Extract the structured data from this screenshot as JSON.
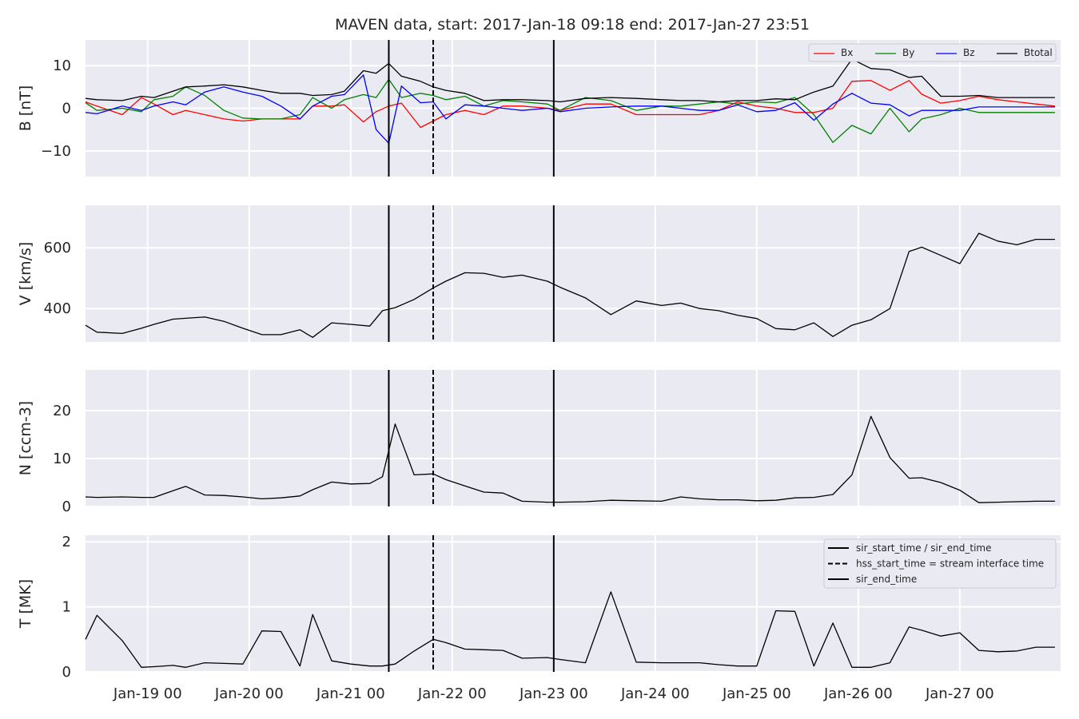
{
  "title": "MAVEN data, start: 2017-Jan-18 09:18  end: 2017-Jan-27 23:51",
  "x_tick_labels": [
    "Jan-19 00",
    "Jan-20 00",
    "Jan-21 00",
    "Jan-22 00",
    "Jan-23 00",
    "Jan-24 00",
    "Jan-25 00",
    "Jan-26 00",
    "Jan-27 00"
  ],
  "colors": {
    "bg": "#eaeaf2",
    "grid": "#ffffff",
    "Bx": "#ff0000",
    "By": "#008000",
    "Bz": "#0000ff",
    "Btotal": "#000000",
    "text": "#262626"
  },
  "chart_data": [
    {
      "type": "line",
      "panel": "B",
      "ylabel": "B [nT]",
      "ylim": [
        -16,
        16
      ],
      "yticks": [
        -10,
        0,
        10
      ],
      "x_range": [
        "2017-01-18 09:18",
        "2017-01-27 23:51"
      ],
      "x_time_days": [
        18.3875,
        18.5,
        18.75,
        18.9375,
        19.0625,
        19.25,
        19.375,
        19.5625,
        19.75,
        19.9375,
        20.125,
        20.3125,
        20.5,
        20.625,
        20.8125,
        20.9375,
        21.125,
        21.25,
        21.375,
        21.5,
        21.6875,
        21.8125,
        21.9375,
        22.125,
        22.3125,
        22.5,
        22.6875,
        22.9375,
        23.0625,
        23.3125,
        23.5625,
        23.8125,
        24.0625,
        24.25,
        24.4375,
        24.625,
        24.8125,
        25.0,
        25.1875,
        25.375,
        25.5625,
        25.75,
        25.9375,
        26.125,
        26.3125,
        26.5,
        26.625,
        26.8125,
        27.0,
        27.1875,
        27.375,
        27.5625,
        27.75,
        27.9375
      ],
      "series": [
        {
          "name": "Bx",
          "color": "#ff0000",
          "values": [
            1.5,
            0.5,
            -1.5,
            2.5,
            1.0,
            -1.5,
            -0.5,
            -1.5,
            -2.5,
            -3.0,
            -2.5,
            -2.5,
            -2.5,
            0.5,
            0.5,
            0.8,
            -3.2,
            -0.8,
            0.5,
            1.2,
            -4.5,
            -3.0,
            -1.5,
            -0.5,
            -1.5,
            0.5,
            0.5,
            0.0,
            -0.5,
            1.0,
            1.0,
            -1.5,
            -1.5,
            -1.5,
            -1.5,
            -0.5,
            1.5,
            0.5,
            0.0,
            -1.0,
            -1.0,
            0.0,
            6.3,
            6.5,
            4.2,
            6.5,
            3.3,
            1.2,
            1.8,
            2.8,
            2.0,
            1.5,
            1.0,
            0.5
          ]
        },
        {
          "name": "By",
          "color": "#008000",
          "values": [
            1.3,
            -0.5,
            0.0,
            -0.8,
            2.0,
            2.8,
            5.0,
            3.0,
            -0.5,
            -2.3,
            -2.5,
            -2.5,
            -1.5,
            2.5,
            0.0,
            2.0,
            3.2,
            2.5,
            6.8,
            2.5,
            3.5,
            3.0,
            2.0,
            2.8,
            0.5,
            1.8,
            1.5,
            1.0,
            -0.5,
            2.5,
            1.8,
            -0.5,
            0.5,
            0.5,
            1.0,
            1.5,
            1.0,
            1.5,
            1.3,
            2.5,
            -1.5,
            -8.0,
            -4.0,
            -6.0,
            0.0,
            -5.5,
            -2.5,
            -1.5,
            0.0,
            -1.0,
            -1.0,
            -1.0,
            -1.0,
            -1.0
          ]
        },
        {
          "name": "Bz",
          "color": "#0000ff",
          "values": [
            -1.0,
            -1.3,
            0.5,
            -0.5,
            0.5,
            1.5,
            0.8,
            3.8,
            5.0,
            3.8,
            2.8,
            0.5,
            -2.5,
            0.5,
            2.8,
            3.2,
            7.8,
            -5.0,
            -8.2,
            5.2,
            1.3,
            1.5,
            -2.5,
            0.8,
            0.5,
            0.0,
            -0.5,
            0.0,
            -0.8,
            0.0,
            0.3,
            0.5,
            0.5,
            0.0,
            -0.5,
            -0.5,
            0.8,
            -0.8,
            -0.5,
            1.3,
            -2.8,
            1.0,
            3.5,
            1.2,
            0.8,
            -1.8,
            -0.5,
            -0.5,
            -0.5,
            0.3,
            0.3,
            0.3,
            0.3,
            0.3
          ]
        },
        {
          "name": "Btotal",
          "color": "#000000",
          "values": [
            2.3,
            2.0,
            1.8,
            2.8,
            2.5,
            4.0,
            5.0,
            5.2,
            5.5,
            5.0,
            4.2,
            3.5,
            3.5,
            3.0,
            3.2,
            4.0,
            8.8,
            8.2,
            10.5,
            7.5,
            6.3,
            5.0,
            4.2,
            3.5,
            1.8,
            2.0,
            2.0,
            1.8,
            1.5,
            2.3,
            2.5,
            2.3,
            2.0,
            1.8,
            1.8,
            1.5,
            1.8,
            1.8,
            2.2,
            2.0,
            3.8,
            5.2,
            11.5,
            9.3,
            9.0,
            7.2,
            7.5,
            2.8,
            2.8,
            3.0,
            2.5,
            2.5,
            2.5,
            2.5
          ]
        }
      ],
      "legend": [
        "Bx",
        "By",
        "Bz",
        "Btotal"
      ],
      "legend_loc": "upper right"
    },
    {
      "type": "line",
      "panel": "V",
      "ylabel": "V [km/s]",
      "ylim": [
        290,
        740
      ],
      "yticks": [
        400,
        600
      ],
      "x_time_days": [
        18.3875,
        18.5,
        18.75,
        18.9375,
        19.0625,
        19.25,
        19.375,
        19.5625,
        19.75,
        19.9375,
        20.125,
        20.3125,
        20.5,
        20.625,
        20.8125,
        21.0,
        21.1875,
        21.3125,
        21.4375,
        21.625,
        21.8125,
        21.9375,
        22.125,
        22.3125,
        22.5,
        22.6875,
        22.9375,
        23.0625,
        23.3125,
        23.5625,
        23.8125,
        24.0625,
        24.25,
        24.4375,
        24.625,
        24.8125,
        25.0,
        25.1875,
        25.375,
        25.5625,
        25.75,
        25.9375,
        26.125,
        26.3125,
        26.5,
        26.625,
        26.8125,
        27.0,
        27.1875,
        27.375,
        27.5625,
        27.75,
        27.9375
      ],
      "series": [
        {
          "name": "V",
          "color": "#000000",
          "values": [
            345,
            322,
            318,
            335,
            348,
            365,
            368,
            372,
            358,
            335,
            314,
            314,
            330,
            305,
            353,
            348,
            342,
            393,
            403,
            430,
            468,
            490,
            518,
            516,
            503,
            510,
            490,
            470,
            435,
            380,
            425,
            410,
            418,
            400,
            393,
            378,
            367,
            334,
            330,
            353,
            308,
            345,
            363,
            400,
            588,
            602,
            575,
            548,
            648,
            622,
            610,
            628,
            628
          ]
        }
      ]
    },
    {
      "type": "line",
      "panel": "N",
      "ylabel": "N [ccm-3]",
      "ylim": [
        0,
        28.5
      ],
      "yticks": [
        0,
        10,
        20
      ],
      "x_time_days": [
        18.3875,
        18.5,
        18.75,
        18.9375,
        19.0625,
        19.25,
        19.375,
        19.5625,
        19.75,
        19.9375,
        20.125,
        20.3125,
        20.5,
        20.625,
        20.8125,
        21.0,
        21.1875,
        21.3125,
        21.4375,
        21.625,
        21.8125,
        21.9375,
        22.125,
        22.3125,
        22.5,
        22.6875,
        22.9375,
        23.0625,
        23.3125,
        23.5625,
        23.8125,
        24.0625,
        24.25,
        24.4375,
        24.625,
        24.8125,
        25.0,
        25.1875,
        25.375,
        25.5625,
        25.75,
        25.9375,
        26.125,
        26.3125,
        26.5,
        26.625,
        26.8125,
        27.0,
        27.1875,
        27.375,
        27.5625,
        27.75,
        27.9375
      ],
      "series": [
        {
          "name": "N",
          "color": "#000000",
          "values": [
            2.0,
            1.9,
            2.0,
            1.9,
            1.9,
            3.3,
            4.2,
            2.4,
            2.3,
            2.0,
            1.6,
            1.8,
            2.2,
            3.5,
            5.1,
            4.7,
            4.8,
            6.2,
            17.2,
            6.6,
            6.8,
            5.6,
            4.3,
            3.0,
            2.8,
            1.1,
            0.9,
            0.9,
            1.0,
            1.3,
            1.2,
            1.1,
            2.0,
            1.6,
            1.4,
            1.4,
            1.2,
            1.3,
            1.8,
            1.9,
            2.5,
            6.6,
            18.8,
            10.2,
            5.9,
            6.0,
            5.0,
            3.4,
            0.8,
            0.9,
            1.0,
            1.1,
            1.1
          ]
        }
      ]
    },
    {
      "type": "line",
      "panel": "T",
      "ylabel": "T [MK]",
      "ylim": [
        0,
        2.1
      ],
      "yticks": [
        0,
        1,
        2
      ],
      "x_time_days": [
        18.3875,
        18.5,
        18.75,
        18.9375,
        19.0625,
        19.25,
        19.375,
        19.5625,
        19.75,
        19.9375,
        20.125,
        20.3125,
        20.5,
        20.625,
        20.8125,
        21.0,
        21.1875,
        21.3125,
        21.4375,
        21.625,
        21.8125,
        21.9375,
        22.125,
        22.3125,
        22.5,
        22.6875,
        22.9375,
        23.0625,
        23.3125,
        23.5625,
        23.8125,
        24.0625,
        24.25,
        24.4375,
        24.625,
        24.8125,
        25.0,
        25.1875,
        25.375,
        25.5625,
        25.75,
        25.9375,
        26.125,
        26.3125,
        26.5,
        26.625,
        26.8125,
        27.0,
        27.1875,
        27.375,
        27.5625,
        27.75,
        27.9375
      ],
      "series": [
        {
          "name": "T",
          "color": "#000000",
          "values": [
            0.5,
            0.87,
            0.48,
            0.07,
            0.08,
            0.1,
            0.07,
            0.14,
            0.13,
            0.12,
            0.63,
            0.62,
            0.09,
            0.88,
            0.17,
            0.12,
            0.09,
            0.09,
            0.12,
            0.32,
            0.5,
            0.45,
            0.35,
            0.34,
            0.33,
            0.21,
            0.22,
            0.19,
            0.14,
            1.23,
            0.15,
            0.14,
            0.14,
            0.14,
            0.11,
            0.09,
            0.09,
            0.94,
            0.93,
            0.09,
            0.75,
            0.07,
            0.07,
            0.14,
            0.69,
            0.64,
            0.55,
            0.6,
            0.33,
            0.31,
            0.32,
            0.38,
            0.38
          ]
        }
      ],
      "legend": [
        "sir_start_time / sir_end_time",
        "hss_start_time = stream interface time",
        "sir_end_time"
      ],
      "legend_loc": "upper right"
    }
  ],
  "event_markers": [
    {
      "label": "sir_start_time / sir_end_time",
      "time_day": 21.375,
      "style": "solid"
    },
    {
      "label": "hss_start_time = stream interface time",
      "time_day": 21.8125,
      "style": "dashed"
    },
    {
      "label": "sir_end_time",
      "time_day": 23.0,
      "style": "solid"
    }
  ]
}
